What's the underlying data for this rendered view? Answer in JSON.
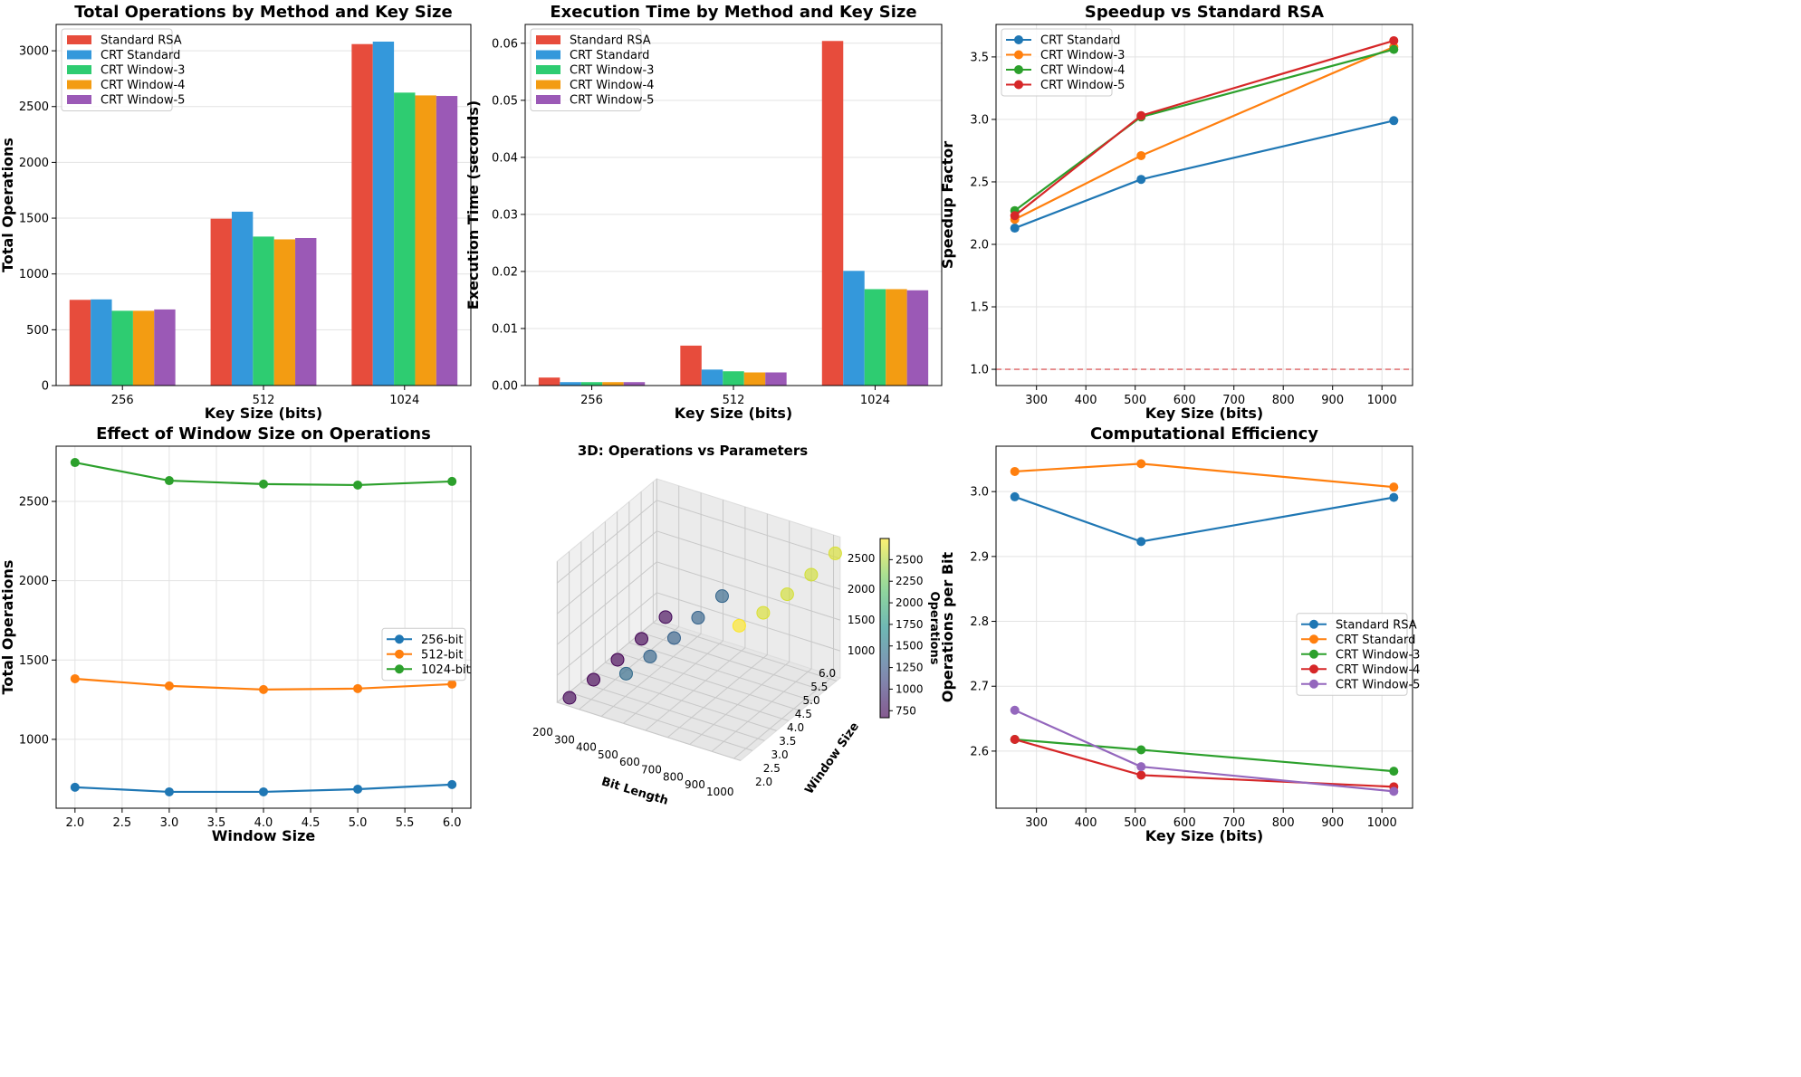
{
  "colors": {
    "bars": [
      "#e74c3c",
      "#3498db",
      "#2ecc71",
      "#f39c12",
      "#9b59b6"
    ],
    "lines": [
      "#1f77b4",
      "#ff7f0e",
      "#2ca02c",
      "#d62728",
      "#9467bd"
    ],
    "baseline": "#d62728"
  },
  "chart_data": [
    {
      "type": "bar",
      "title": "Total Operations by Method and Key Size",
      "xlabel": "Key Size (bits)",
      "ylabel": "Total Operations",
      "categories": [
        "256",
        "512",
        "1024"
      ],
      "ylim": [
        0,
        3236
      ],
      "yticks": [
        0,
        500,
        1000,
        1500,
        2000,
        2500,
        3000
      ],
      "grid": "y",
      "legend": "top-left",
      "series": [
        {
          "name": "Standard RSA",
          "values": [
            768,
            1495,
            3060
          ]
        },
        {
          "name": "CRT Standard",
          "values": [
            772,
            1558,
            3082
          ]
        },
        {
          "name": "CRT Window-3",
          "values": [
            670,
            1335,
            2625
          ]
        },
        {
          "name": "CRT Window-4",
          "values": [
            670,
            1310,
            2600
          ]
        },
        {
          "name": "CRT Window-5",
          "values": [
            682,
            1322,
            2595
          ]
        }
      ]
    },
    {
      "type": "bar",
      "title": "Execution Time by Method and Key Size",
      "xlabel": "Key Size (bits)",
      "ylabel": "Execution Time (seconds)",
      "categories": [
        "256",
        "512",
        "1024"
      ],
      "ylim": [
        0,
        0.0633
      ],
      "yticks": [
        0,
        0.01,
        0.02,
        0.03,
        0.04,
        0.05,
        0.06
      ],
      "ytick_labels": [
        "0.00",
        "0.01",
        "0.02",
        "0.03",
        "0.04",
        "0.05",
        "0.06"
      ],
      "grid": "y",
      "legend": "top-left",
      "series": [
        {
          "name": "Standard RSA",
          "values": [
            0.0014,
            0.007,
            0.0604
          ]
        },
        {
          "name": "CRT Standard",
          "values": [
            0.0006,
            0.0028,
            0.0201
          ]
        },
        {
          "name": "CRT Window-3",
          "values": [
            0.0006,
            0.0025,
            0.0169
          ]
        },
        {
          "name": "CRT Window-4",
          "values": [
            0.0006,
            0.0023,
            0.0169
          ]
        },
        {
          "name": "CRT Window-5",
          "values": [
            0.0006,
            0.0023,
            0.0167
          ]
        }
      ]
    },
    {
      "type": "line",
      "title": "Speedup vs Standard RSA",
      "xlabel": "Key Size (bits)",
      "ylabel": "Speedup Factor",
      "x": [
        256,
        512,
        1024
      ],
      "xlim": [
        218,
        1062
      ],
      "ylim": [
        0.87,
        3.76
      ],
      "xticks": [
        300,
        400,
        500,
        600,
        700,
        800,
        900,
        1000
      ],
      "yticks": [
        1.0,
        1.5,
        2.0,
        2.5,
        3.0,
        3.5
      ],
      "ytick_labels": [
        "1.0",
        "1.5",
        "2.0",
        "2.5",
        "3.0",
        "3.5"
      ],
      "grid": true,
      "legend": "top-left",
      "baseline": 1.0,
      "series": [
        {
          "name": "CRT Standard",
          "values": [
            2.13,
            2.52,
            2.99
          ]
        },
        {
          "name": "CRT Window-3",
          "values": [
            2.2,
            2.71,
            3.58
          ]
        },
        {
          "name": "CRT Window-4",
          "values": [
            2.27,
            3.02,
            3.56
          ]
        },
        {
          "name": "CRT Window-5",
          "values": [
            2.23,
            3.03,
            3.63
          ]
        }
      ]
    },
    {
      "type": "line",
      "title": "Effect of Window Size on Operations",
      "xlabel": "Window Size",
      "ylabel": "Total Operations",
      "x": [
        2,
        3,
        4,
        5,
        6
      ],
      "xlim": [
        1.8,
        6.2
      ],
      "ylim": [
        566,
        2848
      ],
      "xticks": [
        2.0,
        2.5,
        3.0,
        3.5,
        4.0,
        4.5,
        5.0,
        5.5,
        6.0
      ],
      "xtick_labels": [
        "2.0",
        "2.5",
        "3.0",
        "3.5",
        "4.0",
        "4.5",
        "5.0",
        "5.5",
        "6.0"
      ],
      "yticks": [
        1000,
        1500,
        2000,
        2500
      ],
      "grid": true,
      "legend": "center-right",
      "series": [
        {
          "name": "256-bit",
          "values": [
            698,
            669,
            669,
            686,
            715
          ]
        },
        {
          "name": "512-bit",
          "values": [
            1382,
            1337,
            1314,
            1320,
            1348
          ]
        },
        {
          "name": "1024-bit",
          "values": [
            2745,
            2631,
            2609,
            2603,
            2626
          ]
        }
      ]
    },
    {
      "type": "scatter",
      "title": "3D: Operations vs Parameters",
      "xlabel": "Bit Length",
      "ylabel": "Window Size",
      "zlabel": "Operations",
      "xticks": [
        200,
        300,
        400,
        500,
        600,
        700,
        800,
        900,
        1000
      ],
      "yticks": [
        "2.0",
        "2.5",
        "3.0",
        "3.5",
        "4.0",
        "4.5",
        "5.0",
        "5.5",
        "6.0"
      ],
      "zticks": [
        1000,
        1500,
        2000,
        2500
      ],
      "colorbar_ticks": [
        750,
        1000,
        1250,
        1500,
        1750,
        2000,
        2250,
        2500
      ],
      "colormap": "viridis",
      "points": [
        {
          "bits": 256,
          "window": 2,
          "ops": 698
        },
        {
          "bits": 256,
          "window": 3,
          "ops": 669
        },
        {
          "bits": 256,
          "window": 4,
          "ops": 669
        },
        {
          "bits": 256,
          "window": 5,
          "ops": 686
        },
        {
          "bits": 256,
          "window": 6,
          "ops": 715
        },
        {
          "bits": 512,
          "window": 2,
          "ops": 1382
        },
        {
          "bits": 512,
          "window": 3,
          "ops": 1337
        },
        {
          "bits": 512,
          "window": 4,
          "ops": 1314
        },
        {
          "bits": 512,
          "window": 5,
          "ops": 1320
        },
        {
          "bits": 512,
          "window": 6,
          "ops": 1348
        },
        {
          "bits": 1024,
          "window": 2,
          "ops": 2745
        },
        {
          "bits": 1024,
          "window": 3,
          "ops": 2631
        },
        {
          "bits": 1024,
          "window": 4,
          "ops": 2609
        },
        {
          "bits": 1024,
          "window": 5,
          "ops": 2603
        },
        {
          "bits": 1024,
          "window": 6,
          "ops": 2626
        }
      ]
    },
    {
      "type": "line",
      "title": "Computational Efficiency",
      "xlabel": "Key Size (bits)",
      "ylabel": "Operations per Bit",
      "x": [
        256,
        512,
        1024
      ],
      "xlim": [
        218,
        1062
      ],
      "ylim": [
        2.512,
        3.07
      ],
      "xticks": [
        300,
        400,
        500,
        600,
        700,
        800,
        900,
        1000
      ],
      "yticks": [
        2.6,
        2.7,
        2.8,
        2.9,
        3.0
      ],
      "ytick_labels": [
        "2.6",
        "2.7",
        "2.8",
        "2.9",
        "3.0"
      ],
      "grid": true,
      "legend": "center-right",
      "series": [
        {
          "name": "Standard RSA",
          "values": [
            2.992,
            2.923,
            2.991
          ]
        },
        {
          "name": "CRT Standard",
          "values": [
            3.031,
            3.043,
            3.007
          ]
        },
        {
          "name": "CRT Window-3",
          "values": [
            2.618,
            2.602,
            2.569
          ]
        },
        {
          "name": "CRT Window-4",
          "values": [
            2.618,
            2.563,
            2.545
          ]
        },
        {
          "name": "CRT Window-5",
          "values": [
            2.663,
            2.576,
            2.538
          ]
        }
      ]
    }
  ]
}
